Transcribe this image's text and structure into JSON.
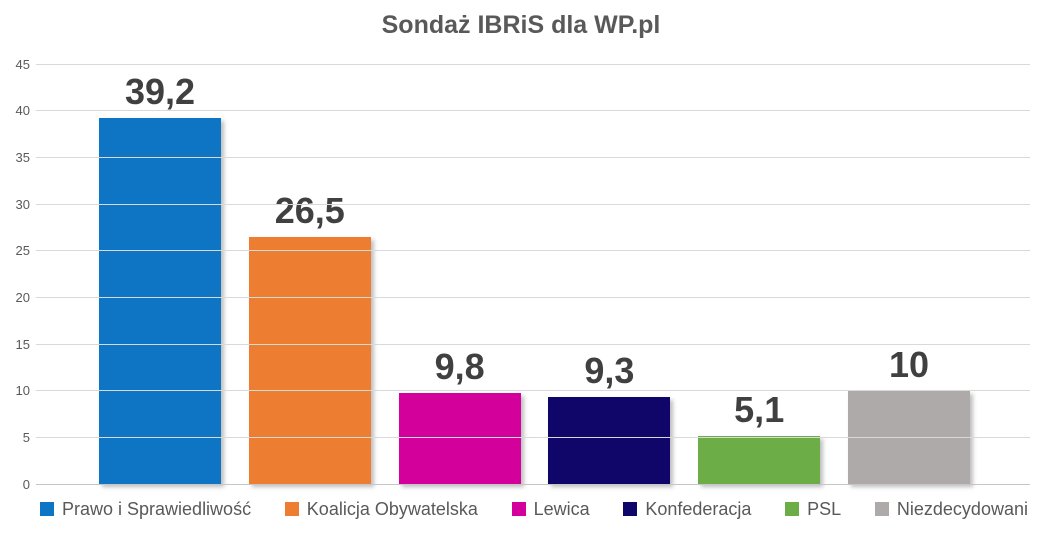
{
  "chart_data": {
    "type": "bar",
    "title": "Sondaż IBRiS dla WP.pl",
    "categories": [
      "Prawo i Sprawiedliwość",
      "Koalicja Obywatelska",
      "Lewica",
      "Konfederacja",
      "PSL",
      "Niezdecydowani"
    ],
    "values": [
      39.2,
      26.5,
      9.8,
      9.3,
      5.1,
      10
    ],
    "value_labels": [
      "39,2",
      "26,5",
      "9,8",
      "9,3",
      "5,1",
      "10"
    ],
    "bar_colors": [
      "#0e74c4",
      "#ed7d31",
      "#d4009b",
      "#10066a",
      "#6cad47",
      "#aeaaaa"
    ],
    "xlabel": "",
    "ylabel": "",
    "ylim": [
      0,
      45
    ],
    "yticks": [
      45,
      40,
      35,
      30,
      25,
      20,
      15,
      10,
      5,
      0
    ],
    "grid": true,
    "legend_position": "bottom"
  },
  "colors": {
    "gridline": "#d9d9d9",
    "baseline": "#c6c6c6",
    "axis_text": "#595959",
    "value_label_text": "#404040",
    "title_text": "#595959",
    "background": "#ffffff"
  }
}
